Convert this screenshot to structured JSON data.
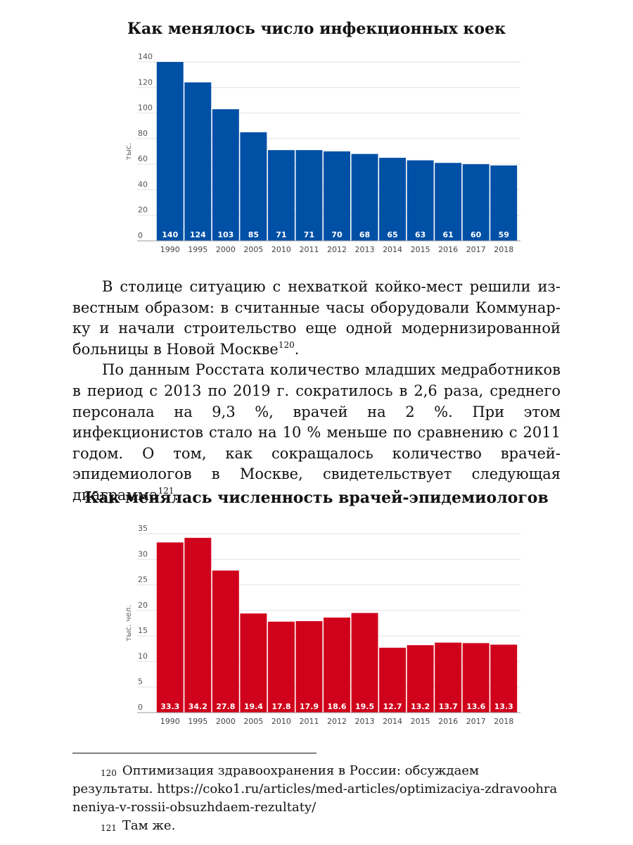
{
  "chart_data": [
    {
      "type": "bar",
      "title": "Как менялось число инфекционных коек",
      "ylabel": "тыс.",
      "xlabel": "",
      "categories": [
        "1990",
        "1995",
        "2000",
        "2005",
        "2010",
        "2011",
        "2012",
        "2013",
        "2014",
        "2015",
        "2016",
        "2017",
        "2018"
      ],
      "values": [
        140,
        124,
        103,
        85,
        71,
        71,
        70,
        68,
        65,
        63,
        61,
        60,
        59
      ],
      "data_labels": [
        "140",
        "124",
        "103",
        "85",
        "71",
        "71",
        "70",
        "68",
        "65",
        "63",
        "61",
        "60",
        "59"
      ],
      "yticks": [
        0,
        20,
        40,
        60,
        80,
        100,
        120,
        140
      ],
      "ylim": [
        0,
        140
      ],
      "color": "#0050a6",
      "grid": true
    },
    {
      "type": "bar",
      "title": "Как менялась численность врачей-эпидемиологов",
      "ylabel": "тыс. чел.",
      "xlabel": "",
      "categories": [
        "1990",
        "1995",
        "2000",
        "2005",
        "2010",
        "2011",
        "2012",
        "2013",
        "2014",
        "2015",
        "2016",
        "2017",
        "2018"
      ],
      "values": [
        33.3,
        34.2,
        27.8,
        19.4,
        17.8,
        17.9,
        18.6,
        19.5,
        12.7,
        13.2,
        13.7,
        13.6,
        13.3
      ],
      "data_labels": [
        "33.3",
        "34.2",
        "27.8",
        "19.4",
        "17.8",
        "17.9",
        "18.6",
        "19.5",
        "12.7",
        "13.2",
        "13.7",
        "13.6",
        "13.3"
      ],
      "yticks": [
        0,
        5,
        10,
        15,
        20,
        25,
        30,
        35
      ],
      "ylim": [
        0,
        35
      ],
      "color": "#d0021b",
      "grid": true
    }
  ],
  "body": {
    "p1": "В столице ситуацию с нехваткой койко-мест решили из­вестным образом: в считанные часы оборудовали Коммунар­ку и начали строительство еще одной модернизированной больницы в Новой Москве",
    "p1_ref": "120",
    "p1_end": ".",
    "p2": "По данным Росстата количество младших медработников в период с 2013 по 2019 г. сократилось в 2,6 раза, среднего персонала на 9,3 %, врачей на 2 %. При этом инфекционистов стало на 10 % меньше по сравнению с 2011 годом. О том, как сокращалось количество врачей-эпидемиологов в Москве, свидетельствует следующая диаграмма",
    "p2_ref": "121",
    "p2_end": "."
  },
  "footnotes": [
    {
      "num": "120",
      "text": "Оптимизация здравоохранения в России: обсуждаем результаты.",
      "url": "https://coko1.ru/articles/med-articles/optimizaciya-zdravoohraneniya-v-rossii-obsuzhdaem-rezultaty/"
    },
    {
      "num": "121",
      "text": "Там же."
    }
  ]
}
